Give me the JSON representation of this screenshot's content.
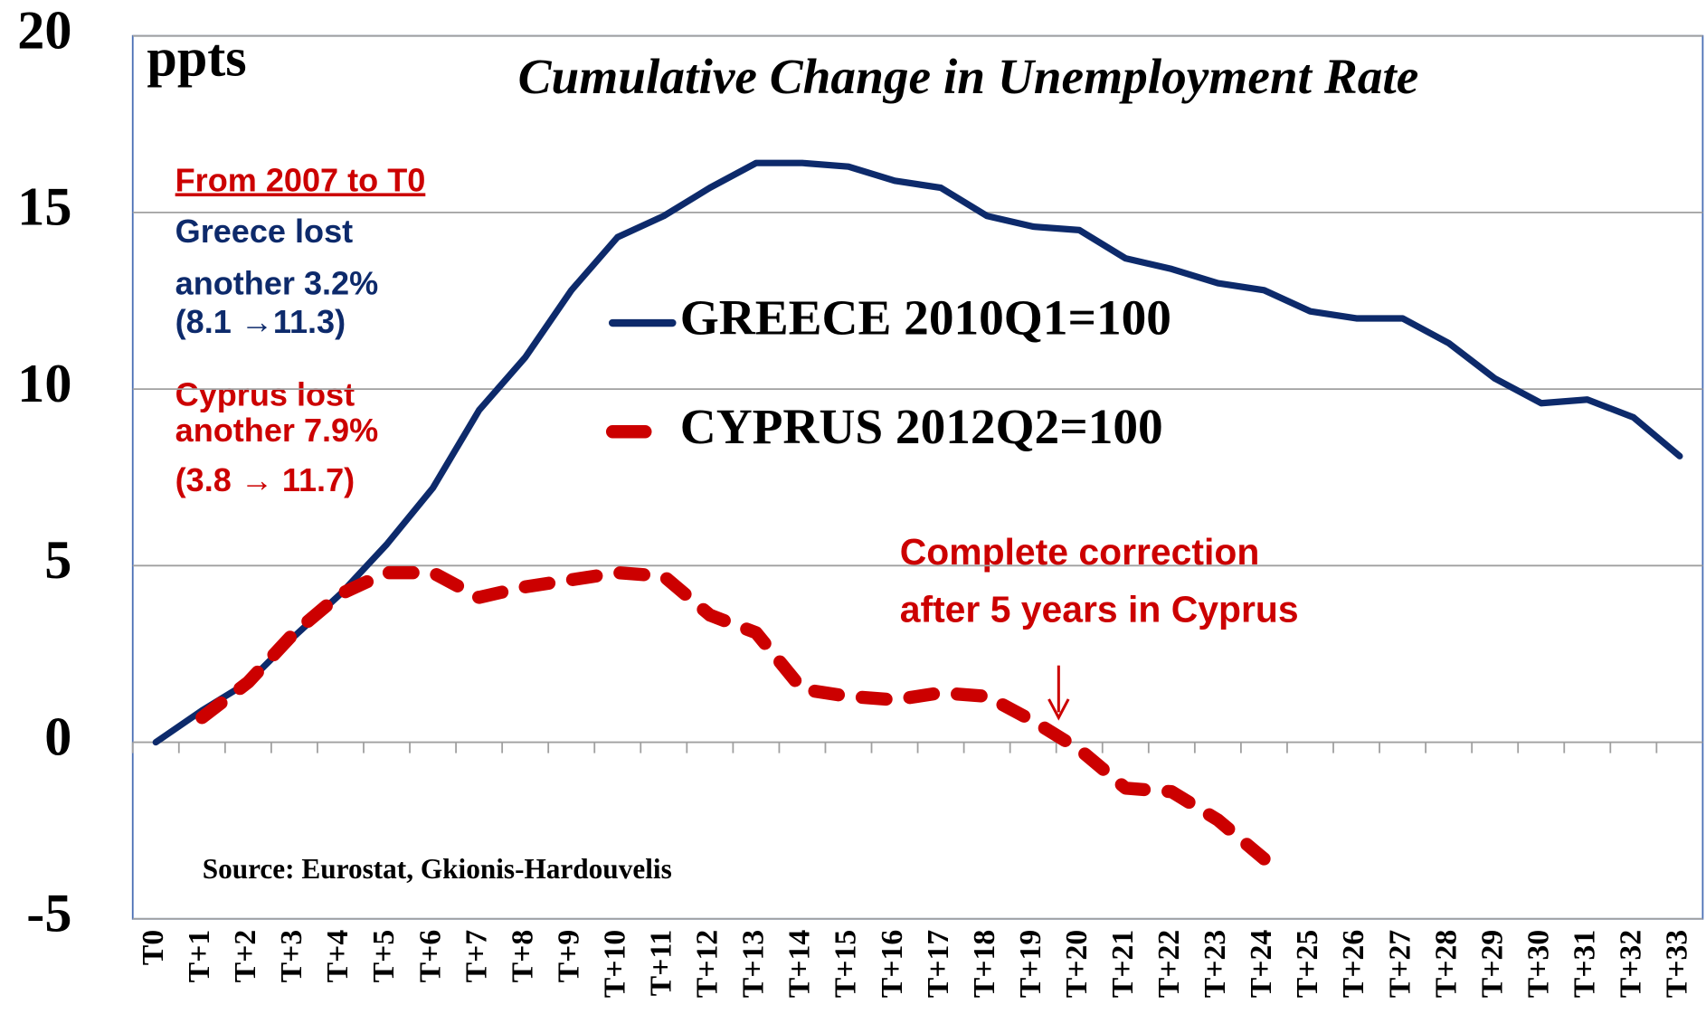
{
  "chart_data": {
    "type": "line",
    "title": "Cumulative Change in Unemployment Rate",
    "y_label": "ppts",
    "source": "Source: Eurostat,  Gkionis-Hardouvelis",
    "annotations": {
      "left": {
        "heading": "From 2007 to T0",
        "lines": [
          "Greece lost",
          "another  3.2%",
          "(8.1 →11.3)"
        ],
        "lines2": [
          "Cyprus lost",
          "another 7.9%",
          "(3.8 → 11.7)"
        ]
      },
      "correction": [
        "Complete correction",
        "after 5 years in Cyprus"
      ]
    },
    "categories": [
      "T0",
      "T+1",
      "T+2",
      "T+3",
      "T+4",
      "T+5",
      "T+6",
      "T+7",
      "T+8",
      "T+9",
      "T+10",
      "T+11",
      "T+12",
      "T+13",
      "T+14",
      "T+15",
      "T+16",
      "T+17",
      "T+18",
      "T+19",
      "T+20",
      "T+21",
      "T+22",
      "T+23",
      "T+24",
      "T+25",
      "T+26",
      "T+27",
      "T+28",
      "T+29",
      "T+30",
      "T+31",
      "T+32",
      "T+33"
    ],
    "series": [
      {
        "name": "GREECE 2010Q1=100",
        "color": "#0d2a6b",
        "dash": false,
        "values": [
          0,
          0.9,
          1.7,
          3.0,
          4.2,
          5.6,
          7.2,
          9.4,
          10.9,
          12.8,
          14.3,
          14.9,
          15.7,
          16.4,
          16.4,
          16.3,
          15.9,
          15.7,
          14.9,
          14.6,
          14.5,
          13.7,
          13.4,
          13.0,
          12.8,
          12.2,
          12.0,
          12.0,
          11.3,
          10.3,
          9.6,
          9.7,
          9.2,
          8.1
        ]
      },
      {
        "name": "CYPRUS 2012Q2=100",
        "color": "#cc0000",
        "dash": true,
        "values": [
          null,
          0.7,
          1.7,
          3.1,
          4.2,
          4.8,
          4.8,
          4.1,
          4.4,
          4.6,
          4.8,
          4.7,
          3.6,
          3.1,
          1.5,
          1.3,
          1.2,
          1.4,
          1.3,
          0.6,
          -0.2,
          -1.3,
          -1.4,
          -2.2,
          -3.3,
          null,
          null,
          null,
          null,
          null,
          null,
          null,
          null,
          null
        ]
      }
    ],
    "ylim": [
      -5,
      20
    ],
    "yticks": [
      -5,
      0,
      5,
      10,
      15,
      20
    ],
    "grid": true
  }
}
